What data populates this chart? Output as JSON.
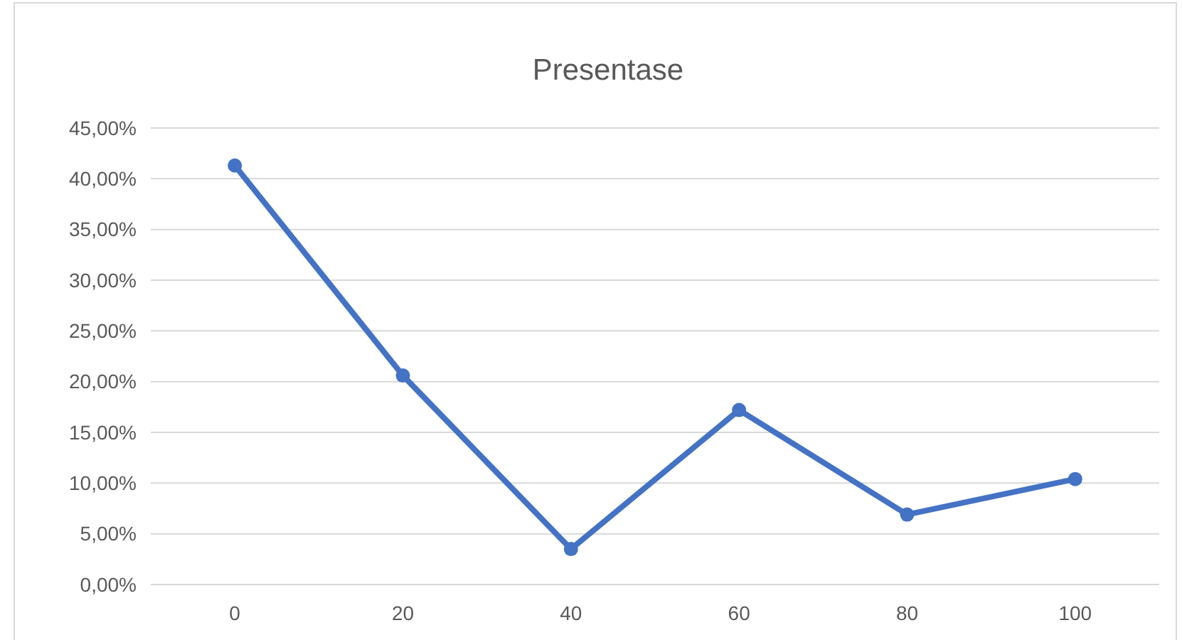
{
  "chart_data": {
    "type": "line",
    "title": "Presentase",
    "categories": [
      "0",
      "20",
      "40",
      "60",
      "80",
      "100"
    ],
    "series": [
      {
        "color": "#4472c4",
        "values": [
          41.3,
          20.6,
          3.5,
          17.2,
          6.9,
          10.4
        ]
      }
    ],
    "ylim": [
      0,
      45
    ],
    "yticks": [
      {
        "value": 0,
        "label": "0,00%"
      },
      {
        "value": 5,
        "label": "5,00%"
      },
      {
        "value": 10,
        "label": "10,00%"
      },
      {
        "value": 15,
        "label": "15,00%"
      },
      {
        "value": 20,
        "label": "20,00%"
      },
      {
        "value": 25,
        "label": "25,00%"
      },
      {
        "value": 30,
        "label": "30,00%"
      },
      {
        "value": 35,
        "label": "35,00%"
      },
      {
        "value": 40,
        "label": "40,00%"
      },
      {
        "value": 45,
        "label": "45,00%"
      }
    ],
    "grid": "y",
    "marker": "circle",
    "line_style": "solid"
  }
}
